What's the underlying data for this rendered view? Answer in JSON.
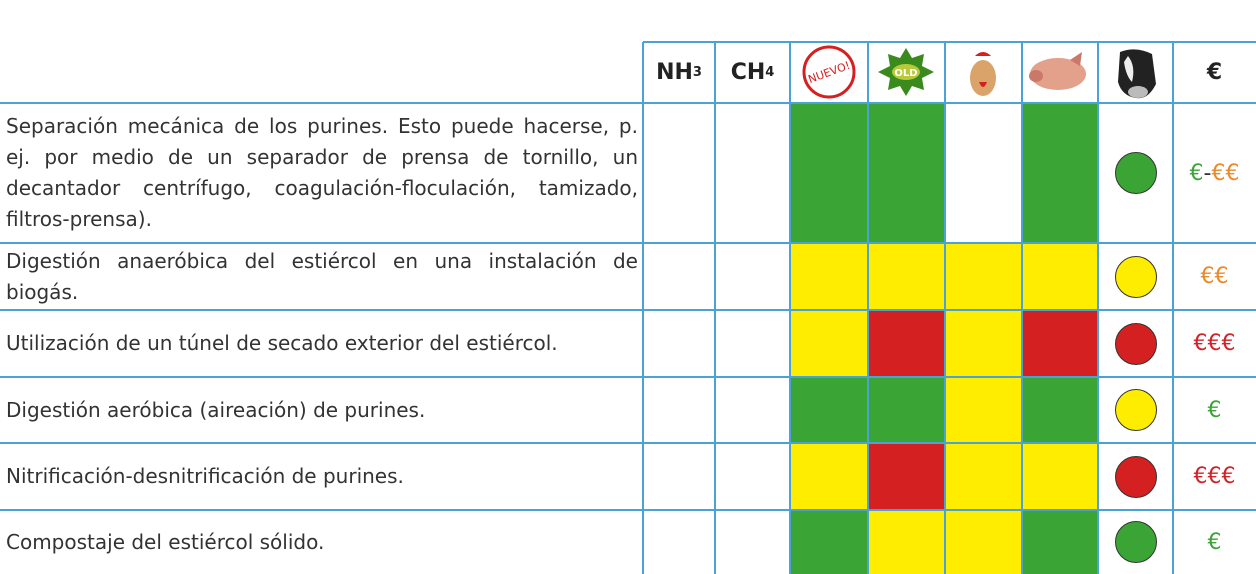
{
  "header": {
    "nh3": {
      "text": "NH",
      "sub": "3"
    },
    "ch4": {
      "text": "CH",
      "sub": "4"
    },
    "new_badge": "NUEVO!",
    "old_badge": "OLD",
    "cost": "€"
  },
  "rows": [
    {
      "text": "Separación mecánica de los purines. Esto puede hacerse, p. ej. por medio de un separador de prensa de tornillo, un decantador centrífugo, coagulación-floculación, tamizado, filtros-prensa).",
      "cells": [
        "#3aa535",
        "#3aa535",
        null,
        "#3aa535"
      ],
      "circle": "#3aa535",
      "cost": [
        {
          "text": "€",
          "color": "#3aa535"
        },
        {
          "text": "-",
          "color": "#333333"
        },
        {
          "text": "€€",
          "color": "#e98a2b"
        }
      ]
    },
    {
      "text": "Digestión anaeróbica del estiércol en una instalación de biogás.",
      "cells": [
        "#ffed00",
        "#ffed00",
        "#ffed00",
        "#ffed00"
      ],
      "circle": "#ffed00",
      "cost": [
        {
          "text": "€€",
          "color": "#e98a2b"
        }
      ]
    },
    {
      "text": "Utilización de un túnel de secado exterior del estiércol.",
      "cells": [
        "#ffed00",
        "#d42020",
        "#ffed00",
        "#d42020"
      ],
      "circle": "#d42020",
      "cost": [
        {
          "text": "€€€",
          "color": "#d0232a"
        }
      ]
    },
    {
      "text": "Digestión aeróbica (aireación) de purines.",
      "cells": [
        "#3aa535",
        "#3aa535",
        "#ffed00",
        "#3aa535"
      ],
      "circle": "#ffed00",
      "cost": [
        {
          "text": "€",
          "color": "#3aa535"
        }
      ]
    },
    {
      "text": "Nitrificación-desnitrificación de purines.",
      "cells": [
        "#ffed00",
        "#d42020",
        "#ffed00",
        "#ffed00"
      ],
      "circle": "#d42020",
      "cost": [
        {
          "text": "€€€",
          "color": "#d0232a"
        }
      ]
    },
    {
      "text": "Compostaje del estiércol sólido.",
      "cells": [
        "#3aa535",
        "#ffed00",
        "#ffed00",
        "#3aa535"
      ],
      "circle": "#3aa535",
      "cost": [
        {
          "text": "€",
          "color": "#3aa535"
        }
      ]
    }
  ]
}
